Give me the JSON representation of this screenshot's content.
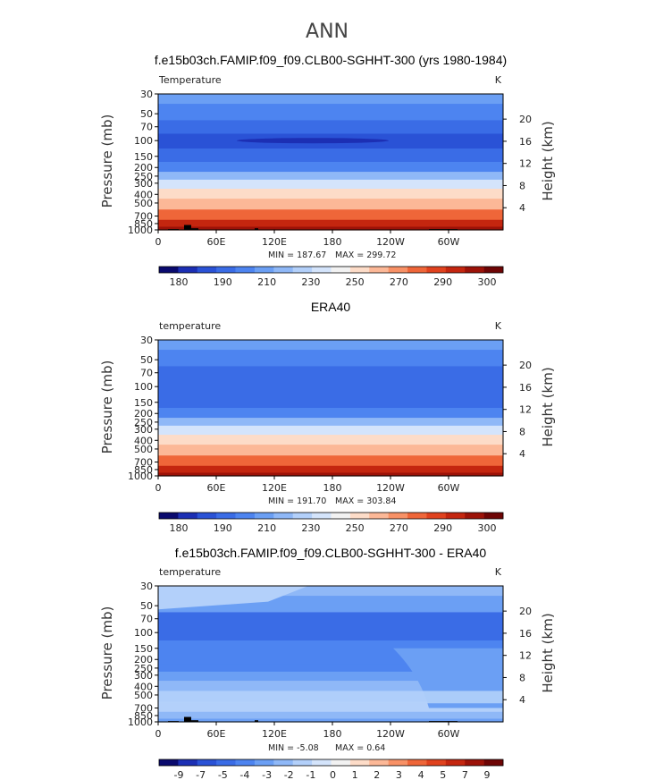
{
  "figure_title": "ANN",
  "colors": {
    "abs_scale": [
      "#0a0a6e",
      "#1c2fb4",
      "#2a52d6",
      "#3a6ce6",
      "#4d84f0",
      "#6b9ff4",
      "#8fb8f7",
      "#b3d0fa",
      "#d4e4fb",
      "#f2f2f2",
      "#fddcc8",
      "#fcb897",
      "#f89166",
      "#ef6639",
      "#e0421e",
      "#c4260f",
      "#9c1208",
      "#6e0505"
    ],
    "diff_scale": [
      "#0a0a6e",
      "#1c2fb4",
      "#2a52d6",
      "#3a6ce6",
      "#4d84f0",
      "#6b9ff4",
      "#8fb8f7",
      "#b3d0fa",
      "#d4e4fb",
      "#f2f2f2",
      "#fddcc8",
      "#fcb897",
      "#f89166",
      "#ef6639",
      "#e0421e",
      "#c4260f",
      "#9c1208",
      "#6e0505"
    ],
    "topography": "#000000"
  },
  "chart_data": [
    {
      "type": "heatmap",
      "title": "f.e15b03ch.FAMIP.f09_f09.CLB00-SGHHT-300 (yrs 1980-1984)",
      "left_label": "Temperature",
      "units": "K",
      "ylabel": "Pressure  (mb)",
      "y2label": "Height  (km)",
      "y_ticks": [
        "30",
        "50",
        "70",
        "100",
        "150",
        "200",
        "250",
        "300",
        "400",
        "500",
        "700",
        "850",
        "1000"
      ],
      "y2_ticks": [
        "20",
        "16",
        "12",
        "8",
        "4"
      ],
      "x_ticks": [
        "0",
        "60E",
        "120E",
        "180",
        "120W",
        "60W"
      ],
      "min_label": "MIN = 187.67",
      "max_label": "MAX = 299.72",
      "min": 187.67,
      "max": 299.72,
      "colorbar_labels": [
        "180",
        "190",
        "210",
        "230",
        "250",
        "270",
        "290",
        "300"
      ],
      "bands": [
        {
          "p": 30,
          "level": 5
        },
        {
          "p": 50,
          "level": 4
        },
        {
          "p": 70,
          "level": 3
        },
        {
          "p": 100,
          "level": 2
        },
        {
          "p": 150,
          "level": 3
        },
        {
          "p": 200,
          "level": 4
        },
        {
          "p": 250,
          "level": 6
        },
        {
          "p": 300,
          "level": 8
        },
        {
          "p": 400,
          "level": 10
        },
        {
          "p": 500,
          "level": 11
        },
        {
          "p": 700,
          "level": 13
        },
        {
          "p": 850,
          "level": 15
        },
        {
          "p": 1000,
          "level": 16
        }
      ]
    },
    {
      "type": "heatmap",
      "title": "ERA40",
      "left_label": "temperature",
      "units": "K",
      "ylabel": "Pressure  (mb)",
      "y2label": "Height  (km)",
      "y_ticks": [
        "30",
        "50",
        "70",
        "100",
        "150",
        "200",
        "250",
        "300",
        "400",
        "500",
        "700",
        "850",
        "1000"
      ],
      "y2_ticks": [
        "20",
        "16",
        "12",
        "8",
        "4"
      ],
      "x_ticks": [
        "0",
        "60E",
        "120E",
        "180",
        "120W",
        "60W"
      ],
      "min_label": "MIN = 191.70",
      "max_label": "MAX = 303.84",
      "min": 191.7,
      "max": 303.84,
      "colorbar_labels": [
        "180",
        "190",
        "210",
        "230",
        "250",
        "270",
        "290",
        "300"
      ],
      "bands": [
        {
          "p": 30,
          "level": 5
        },
        {
          "p": 50,
          "level": 4
        },
        {
          "p": 70,
          "level": 3
        },
        {
          "p": 100,
          "level": 3
        },
        {
          "p": 150,
          "level": 3
        },
        {
          "p": 200,
          "level": 4
        },
        {
          "p": 250,
          "level": 6
        },
        {
          "p": 300,
          "level": 8
        },
        {
          "p": 400,
          "level": 10
        },
        {
          "p": 500,
          "level": 11
        },
        {
          "p": 700,
          "level": 13
        },
        {
          "p": 850,
          "level": 15
        },
        {
          "p": 1000,
          "level": 16
        }
      ]
    },
    {
      "type": "heatmap",
      "title": "f.e15b03ch.FAMIP.f09_f09.CLB00-SGHHT-300 - ERA40",
      "left_label": "temperature",
      "units": "K",
      "ylabel": "Pressure  (mb)",
      "y2label": "Height  (km)",
      "y_ticks": [
        "30",
        "50",
        "70",
        "100",
        "150",
        "200",
        "250",
        "300",
        "400",
        "500",
        "700",
        "850",
        "1000"
      ],
      "y2_ticks": [
        "20",
        "16",
        "12",
        "8",
        "4"
      ],
      "x_ticks": [
        "0",
        "60E",
        "120E",
        "180",
        "120W",
        "60W"
      ],
      "min_label": "MIN =  -5.08",
      "max_label": "MAX =   0.64",
      "min": -5.08,
      "max": 0.64,
      "colorbar_labels": [
        "-9",
        "-7",
        "-5",
        "-4",
        "-3",
        "-2",
        "-1",
        "0",
        "1",
        "2",
        "3",
        "4",
        "5",
        "7",
        "9"
      ],
      "bands": [
        {
          "p": 30,
          "level": 6
        },
        {
          "p": 50,
          "level": 5
        },
        {
          "p": 70,
          "level": 3
        },
        {
          "p": 100,
          "level": 3
        },
        {
          "p": 150,
          "level": 4
        },
        {
          "p": 200,
          "level": 4
        },
        {
          "p": 250,
          "level": 4
        },
        {
          "p": 300,
          "level": 5
        },
        {
          "p": 400,
          "level": 6
        },
        {
          "p": 500,
          "level": 6
        },
        {
          "p": 700,
          "level": 7
        },
        {
          "p": 850,
          "level": 6
        },
        {
          "p": 1000,
          "level": 5
        }
      ]
    }
  ]
}
